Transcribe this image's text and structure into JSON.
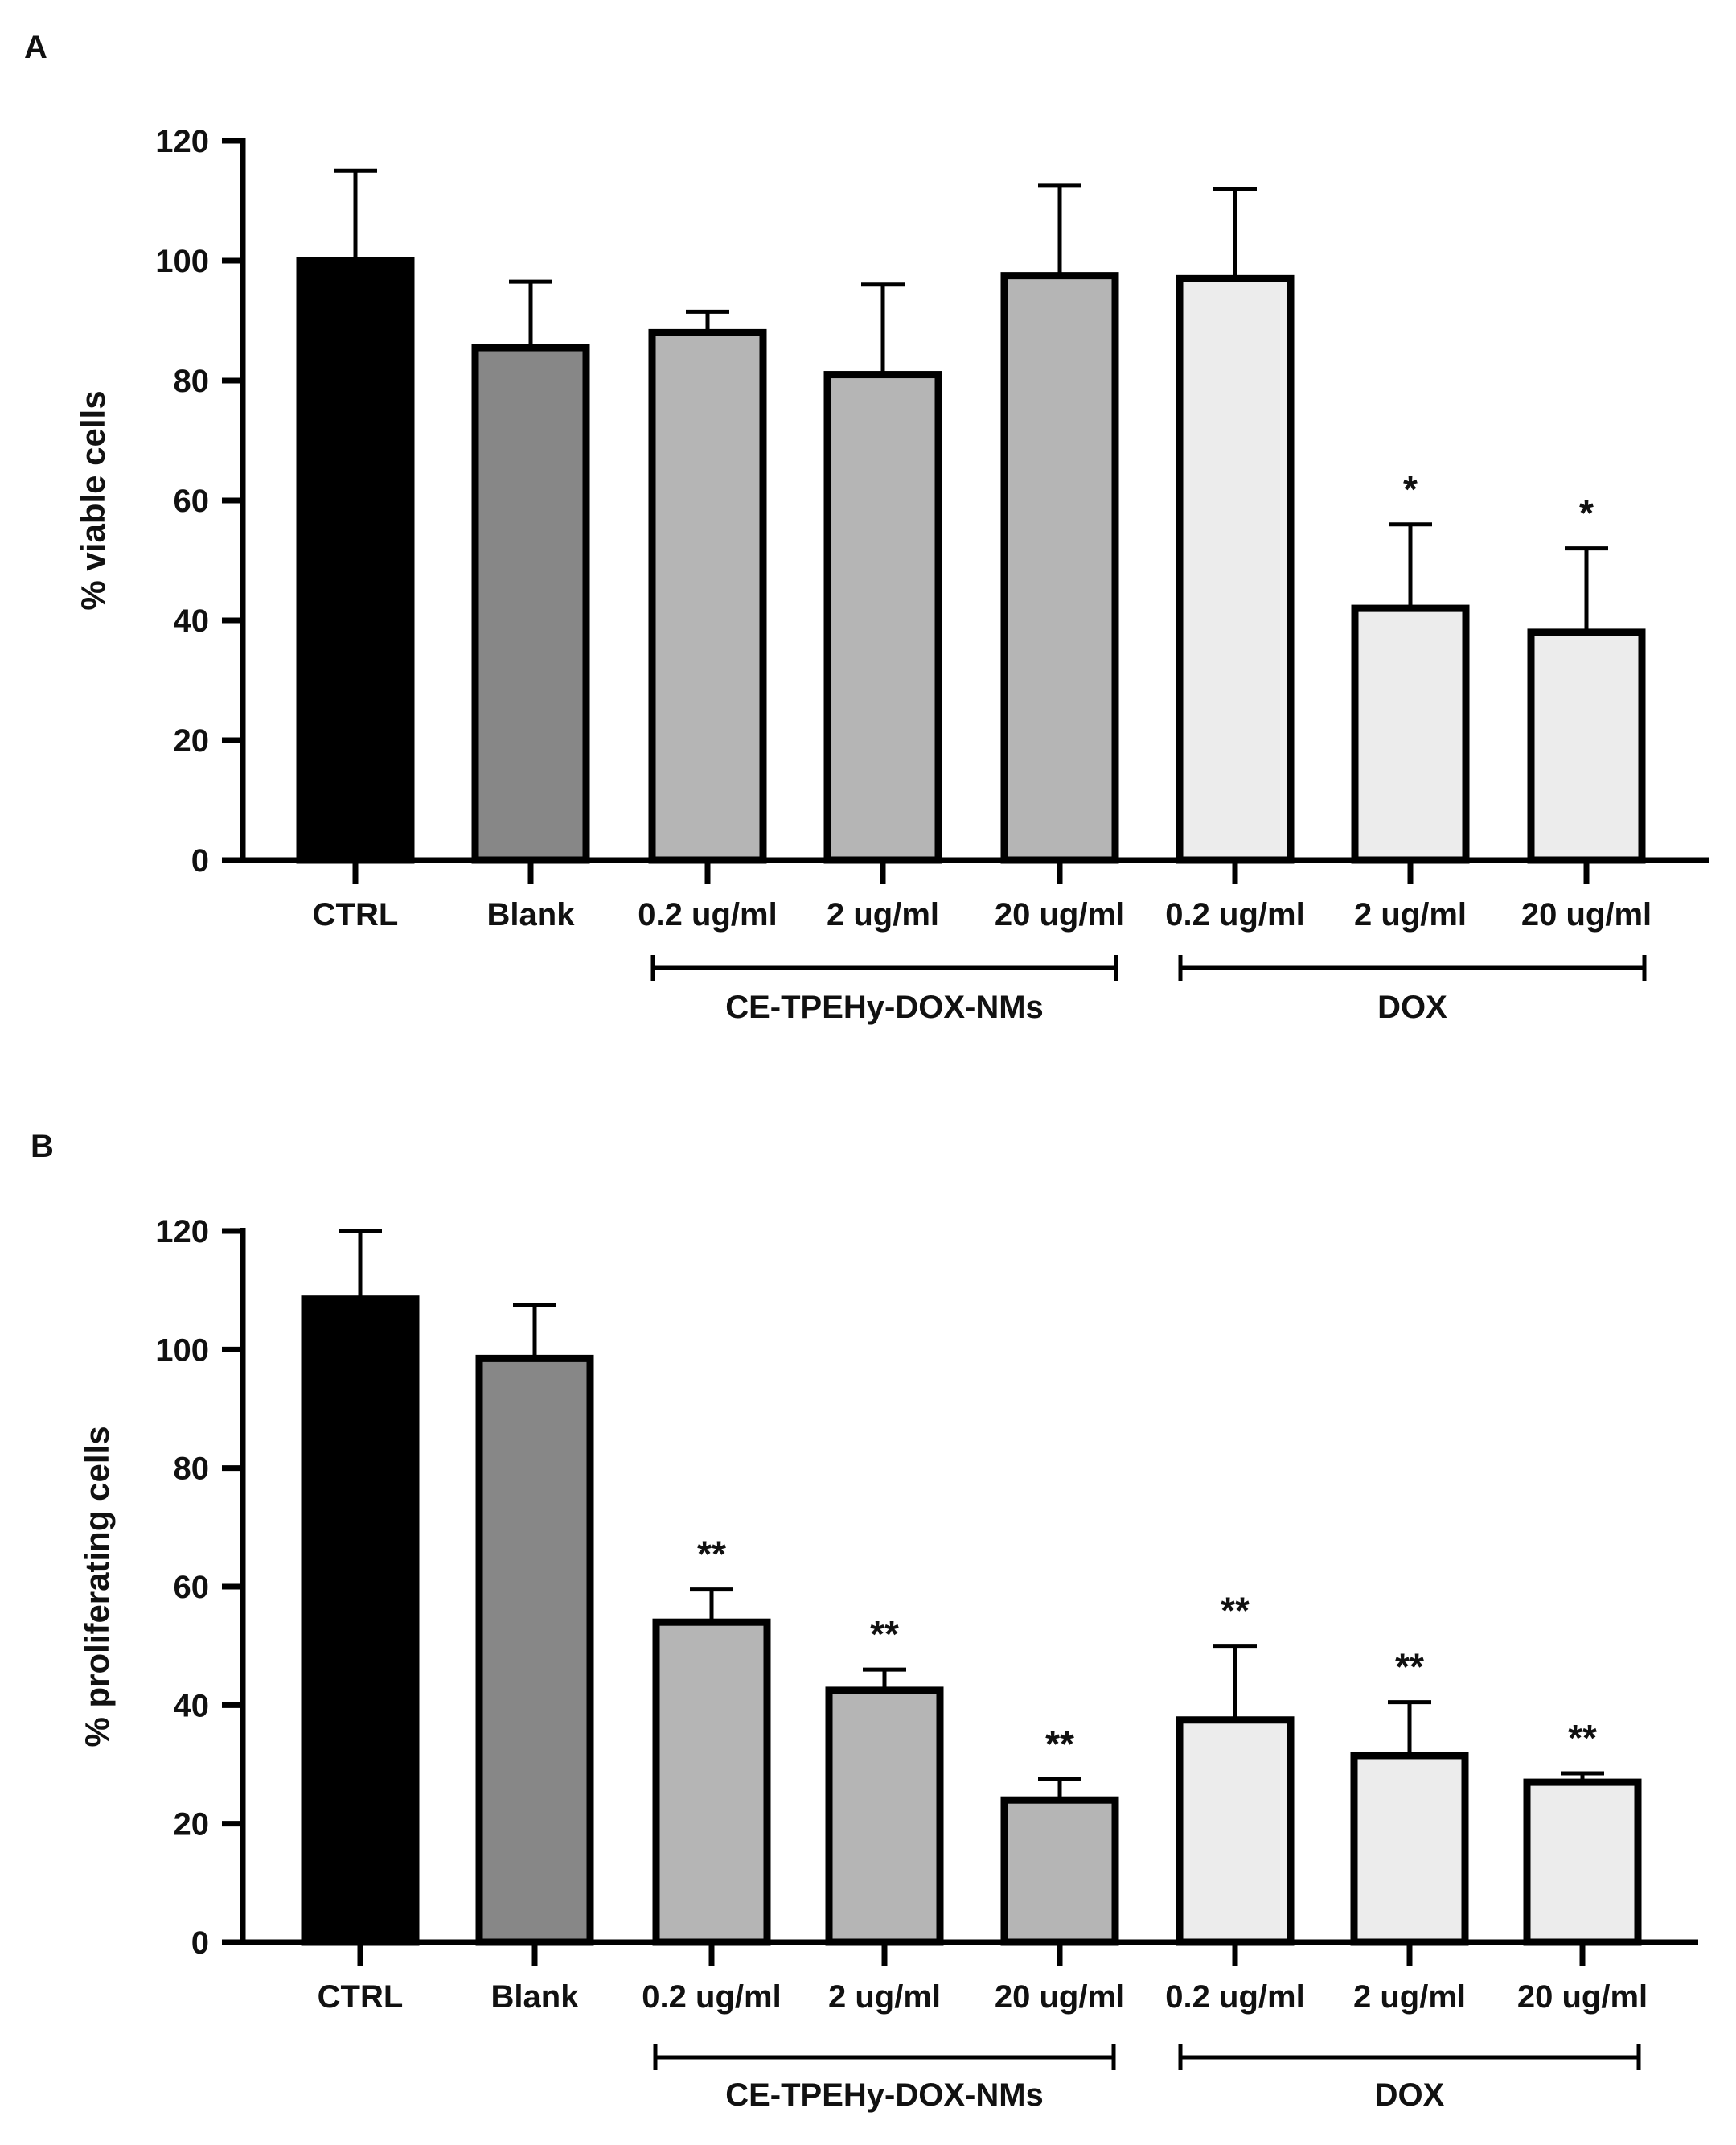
{
  "chart_data": [
    {
      "panel_label": "A",
      "type": "bar",
      "title": "",
      "xlabel": "",
      "ylabel": "% viable cells",
      "ylim": [
        0,
        120
      ],
      "yticks": [
        "0",
        "20",
        "40",
        "60",
        "80",
        "100",
        "120"
      ],
      "categories": [
        "CTRL",
        "Blank",
        "0.2 ug/ml",
        "2 ug/ml",
        "20 ug/ml",
        "0.2 ug/ml",
        "2 ug/ml",
        "20 ug/ml"
      ],
      "values": [
        100,
        85.5,
        88,
        81,
        97.5,
        97,
        42,
        38
      ],
      "error": [
        15,
        11,
        3.5,
        15,
        15,
        15,
        14,
        14
      ],
      "significance": [
        "",
        "",
        "",
        "",
        "",
        "",
        "*",
        "*"
      ],
      "colors": [
        "#000000",
        "#878787",
        "#b5b5b5",
        "#b5b5b5",
        "#b5b5b5",
        "#ececec",
        "#ececec",
        "#ececec"
      ],
      "groups": [
        {
          "label": "CE-TPEHy-DOX-NMs",
          "from": 2,
          "to": 4
        },
        {
          "label": "DOX",
          "from": 5,
          "to": 7
        }
      ]
    },
    {
      "panel_label": "B",
      "type": "bar",
      "title": "",
      "xlabel": "",
      "ylabel": "% proliferating cells",
      "ylim": [
        0,
        120
      ],
      "yticks": [
        "0",
        "20",
        "40",
        "60",
        "80",
        "100",
        "120"
      ],
      "categories": [
        "CTRL",
        "Blank",
        "0.2 ug/ml",
        "2 ug/ml",
        "20 ug/ml",
        "0.2 ug/ml",
        "2 ug/ml",
        "20 ug/ml"
      ],
      "values": [
        108.5,
        98.5,
        54,
        42.5,
        24,
        37.5,
        31.5,
        27
      ],
      "error": [
        11.5,
        9,
        5.5,
        3.5,
        3.5,
        12.5,
        9,
        1.5
      ],
      "significance": [
        "",
        "",
        "**",
        "**",
        "**",
        "**",
        "**",
        "**"
      ],
      "colors": [
        "#000000",
        "#878787",
        "#b5b5b5",
        "#b5b5b5",
        "#b5b5b5",
        "#ececec",
        "#ececec",
        "#ececec"
      ],
      "groups": [
        {
          "label": "CE-TPEHy-DOX-NMs",
          "from": 2,
          "to": 4
        },
        {
          "label": "DOX",
          "from": 5,
          "to": 7
        }
      ]
    }
  ]
}
